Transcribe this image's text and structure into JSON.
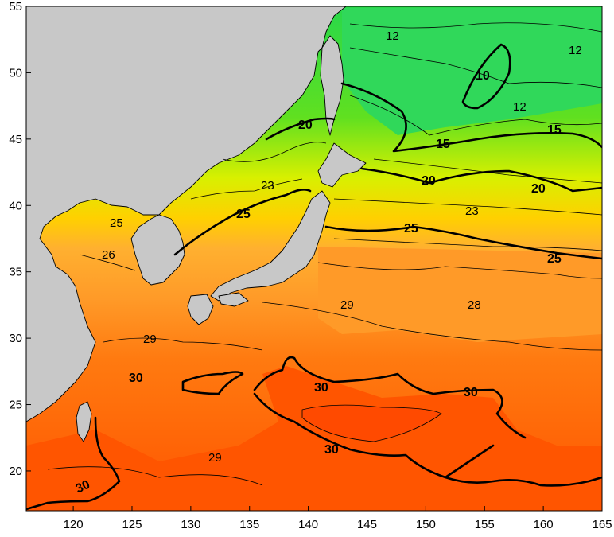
{
  "map": {
    "lon_ticks": [
      "120",
      "125",
      "130",
      "135",
      "140",
      "145",
      "150",
      "155",
      "160",
      "165"
    ],
    "lat_ticks": [
      "55",
      "50",
      "45",
      "40",
      "35",
      "30",
      "25",
      "20"
    ],
    "contour_labels": {
      "c12a": "12",
      "c12b": "12",
      "c12c": "12",
      "c10": "10",
      "c15a": "15",
      "c15b": "15",
      "c20a": "20",
      "c20b": "20",
      "c20c": "20",
      "c23a": "23",
      "c23b": "23",
      "c25a": "25",
      "c25b": "25",
      "c25c": "25",
      "c25d": "25",
      "c26": "26",
      "c28": "28",
      "c29a": "29",
      "c29b": "29",
      "c29c": "29",
      "c30a": "30",
      "c30b": "30",
      "c30c": "30",
      "c30d": "30",
      "c30e": "30"
    },
    "colors": {
      "land": "#c8c8c8",
      "sst_10": "#00c8a0",
      "sst_12": "#28d84a",
      "sst_15": "#60e020",
      "sst_20": "#d8f000",
      "sst_23": "#ffd000",
      "sst_25": "#ffb030",
      "sst_28": "#ff9a28",
      "sst_29": "#ff7a10",
      "sst_30": "#ff5500"
    }
  }
}
